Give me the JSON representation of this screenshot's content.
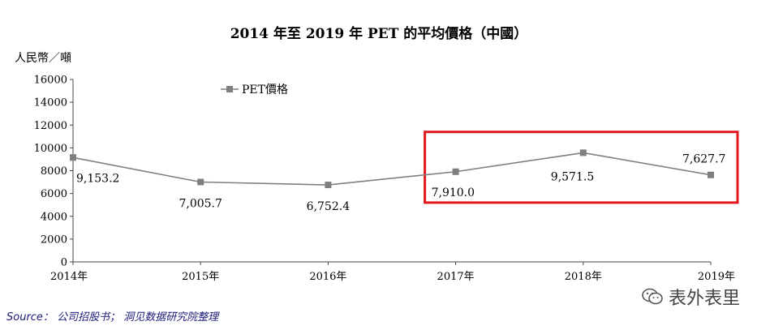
{
  "chart_data": {
    "type": "line",
    "title": "2014 年至 2019 年 PET 的平均價格（中國）",
    "ylabel": "人民幣／噸",
    "xlabel": "",
    "categories": [
      "2014年",
      "2015年",
      "2016年",
      "2017年",
      "2018年",
      "2019年"
    ],
    "yticks": [
      "0",
      "2000",
      "4000",
      "6000",
      "8000",
      "10000",
      "12000",
      "14000",
      "16000"
    ],
    "ylim": [
      0,
      16000
    ],
    "series": [
      {
        "name": "PET價格",
        "values": [
          9153.2,
          7005.7,
          6752.4,
          7910.0,
          9571.5,
          7627.7
        ],
        "labels": [
          "9,153.2",
          "7,005.7",
          "6,752.4",
          "7,910.0",
          "9,571.5",
          "7,627.7"
        ]
      }
    ],
    "legend_position": "top-left",
    "grid": false,
    "highlight": {
      "from_category": "2017年",
      "to_category": "2019年",
      "color": "#e0191e"
    },
    "line_color": "#7f7f7f"
  },
  "footer": {
    "source": "Source：  公司招股书；  洞见数据研究院整理",
    "brand": "表外表里",
    "brand_icon": "wechat-icon"
  }
}
